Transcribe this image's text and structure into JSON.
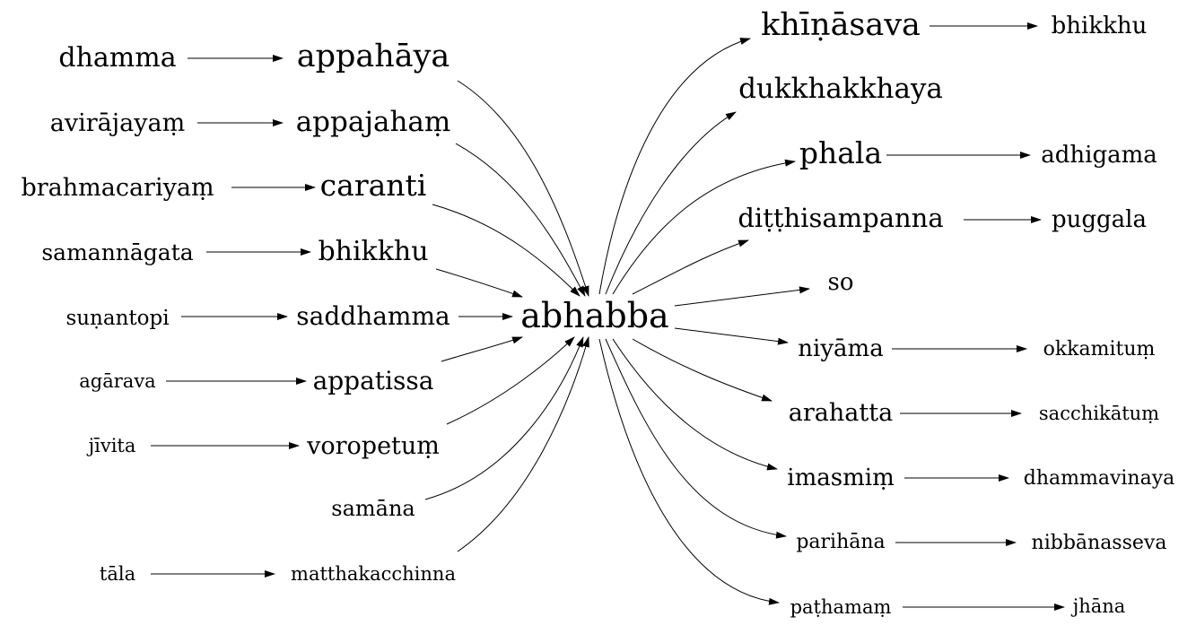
{
  "graph": {
    "center": {
      "label": "abhabba"
    },
    "left_nodes": [
      {
        "id": "dhamma",
        "label": "dhamma"
      },
      {
        "id": "appahaya",
        "label": "appahāya"
      },
      {
        "id": "avirajayam",
        "label": "avirājayaṃ"
      },
      {
        "id": "appajaham",
        "label": "appajahaṃ"
      },
      {
        "id": "brahmacariyam",
        "label": "brahmacariyaṃ"
      },
      {
        "id": "caranti",
        "label": "caranti"
      },
      {
        "id": "samannagata",
        "label": "samannāgata"
      },
      {
        "id": "bhikkhu-left",
        "label": "bhikkhu"
      },
      {
        "id": "sunantopi",
        "label": "suṇantopi"
      },
      {
        "id": "saddhamma",
        "label": "saddhamma"
      },
      {
        "id": "agarava",
        "label": "agārava"
      },
      {
        "id": "appatissa",
        "label": "appatissa"
      },
      {
        "id": "jivita",
        "label": "jīvita"
      },
      {
        "id": "voropetum",
        "label": "voropetuṃ"
      },
      {
        "id": "samana",
        "label": "samāna"
      },
      {
        "id": "tala",
        "label": "tāla"
      },
      {
        "id": "matthakacchinna",
        "label": "matthakacchinna"
      }
    ],
    "right_nodes": [
      {
        "id": "khinasava",
        "label": "khīṇāsava"
      },
      {
        "id": "bhikkhu-right",
        "label": "bhikkhu"
      },
      {
        "id": "dukkhakkhaya",
        "label": "dukkhakkhaya"
      },
      {
        "id": "phala",
        "label": "phala"
      },
      {
        "id": "adhigama",
        "label": "adhigama"
      },
      {
        "id": "ditthisampanna",
        "label": "diṭṭhisampanna"
      },
      {
        "id": "puggala",
        "label": "puggala"
      },
      {
        "id": "so",
        "label": "so"
      },
      {
        "id": "niyama",
        "label": "niyāma"
      },
      {
        "id": "okkamitum",
        "label": "okkamituṃ"
      },
      {
        "id": "arahatta",
        "label": "arahatta"
      },
      {
        "id": "sacchikatum",
        "label": "sacchikātuṃ"
      },
      {
        "id": "imasmim",
        "label": "imasmiṃ"
      },
      {
        "id": "dhammavinaya",
        "label": "dhammavinaya"
      },
      {
        "id": "parihana",
        "label": "parihāna"
      },
      {
        "id": "nibbanasseva",
        "label": "nibbānasseva"
      },
      {
        "id": "pathamam",
        "label": "paṭhamaṃ"
      },
      {
        "id": "jhana",
        "label": "jhāna"
      }
    ]
  }
}
